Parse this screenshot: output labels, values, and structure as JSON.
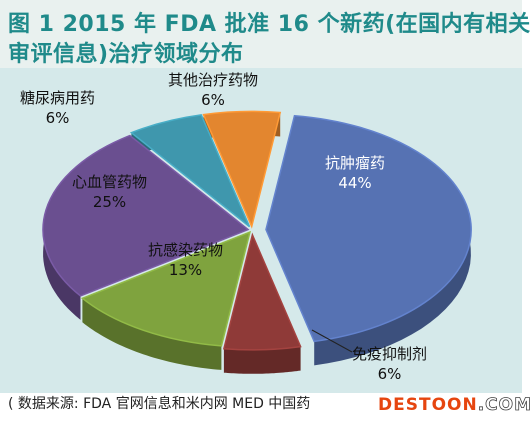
{
  "chart_data": {
    "type": "pie",
    "title_line1": "图 1  2015 年 FDA 批准 16 个新药(在国内有相关",
    "title_line2": "审评信息)治疗领域分布",
    "slices": [
      {
        "label": "抗肿瘤药",
        "pct_text": "44%",
        "value": 44,
        "color": "#5672b3"
      },
      {
        "label": "免疫抑制剂",
        "pct_text": "6%",
        "value": 6,
        "color": "#8f3a38"
      },
      {
        "label": "抗感染药物",
        "pct_text": "13%",
        "value": 13,
        "color": "#7fa33e"
      },
      {
        "label": "心血管药物",
        "pct_text": "25%",
        "value": 25,
        "color": "#6a4f90"
      },
      {
        "label": "糖尿病用药",
        "pct_text": "6%",
        "value": 6,
        "color": "#3f97ad"
      },
      {
        "label": "其他治疗药物",
        "pct_text": "6%",
        "value": 6,
        "color": "#e3862f"
      }
    ]
  },
  "footer": {
    "source_text": "( 数据来源: FDA 官网信息和米内网 MED 中国药",
    "watermark_main": "DESTOON",
    "watermark_sub": ".COM"
  }
}
